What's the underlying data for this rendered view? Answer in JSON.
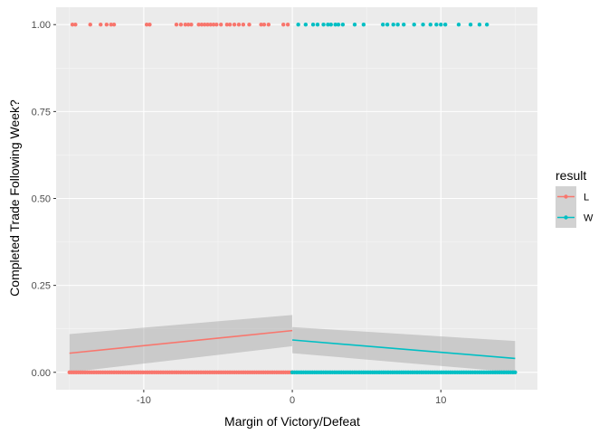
{
  "chart_data": {
    "type": "scatter",
    "xlabel": "Margin of Victory/Defeat",
    "ylabel": "Completed Trade Following Week?",
    "xlim": [
      -15.9,
      16.5
    ],
    "ylim": [
      -0.05,
      1.05
    ],
    "x_ticks": [
      -10,
      0,
      10
    ],
    "x_tick_labels": [
      "-10",
      "0",
      "10"
    ],
    "y_ticks": [
      0,
      0.25,
      0.5,
      0.75,
      1.0
    ],
    "y_tick_labels": [
      "0.00",
      "0.25",
      "0.50",
      "0.75",
      "1.00"
    ],
    "grid": true,
    "legend": {
      "title": "result",
      "position": "right"
    },
    "series": [
      {
        "name": "L",
        "color": "#F8766D",
        "points_y1": [
          -14.8,
          -14.6,
          -13.6,
          -12.9,
          -12.5,
          -12.2,
          -12.0,
          -9.8,
          -9.6,
          -7.8,
          -7.5,
          -7.2,
          -7.0,
          -6.8,
          -6.3,
          -6.1,
          -5.9,
          -5.7,
          -5.5,
          -5.3,
          -5.1,
          -4.8,
          -4.4,
          -4.2,
          -3.9,
          -3.6,
          -3.3,
          -2.9,
          -2.1,
          -1.9,
          -1.6,
          -0.6,
          -0.3
        ],
        "points_y0_range": [
          -15,
          0
        ],
        "fit": {
          "x": [
            -15,
            0
          ],
          "y": [
            0.055,
            0.12
          ],
          "ci_lower": [
            0.0,
            0.075
          ],
          "ci_upper": [
            0.11,
            0.165
          ]
        }
      },
      {
        "name": "W",
        "color": "#00BFC4",
        "points_y1": [
          0.4,
          0.9,
          1.4,
          1.7,
          2.1,
          2.4,
          2.6,
          2.9,
          3.1,
          3.4,
          4.2,
          4.8,
          6.1,
          6.4,
          6.8,
          7.1,
          7.5,
          8.2,
          8.8,
          9.3,
          9.7,
          10.0,
          10.3,
          11.2,
          12.0,
          12.6,
          13.1
        ],
        "points_y0_range": [
          0,
          15
        ],
        "fit": {
          "x": [
            0,
            15
          ],
          "y": [
            0.093,
            0.04
          ],
          "ci_lower": [
            0.055,
            0.0
          ],
          "ci_upper": [
            0.13,
            0.09
          ]
        }
      }
    ]
  }
}
